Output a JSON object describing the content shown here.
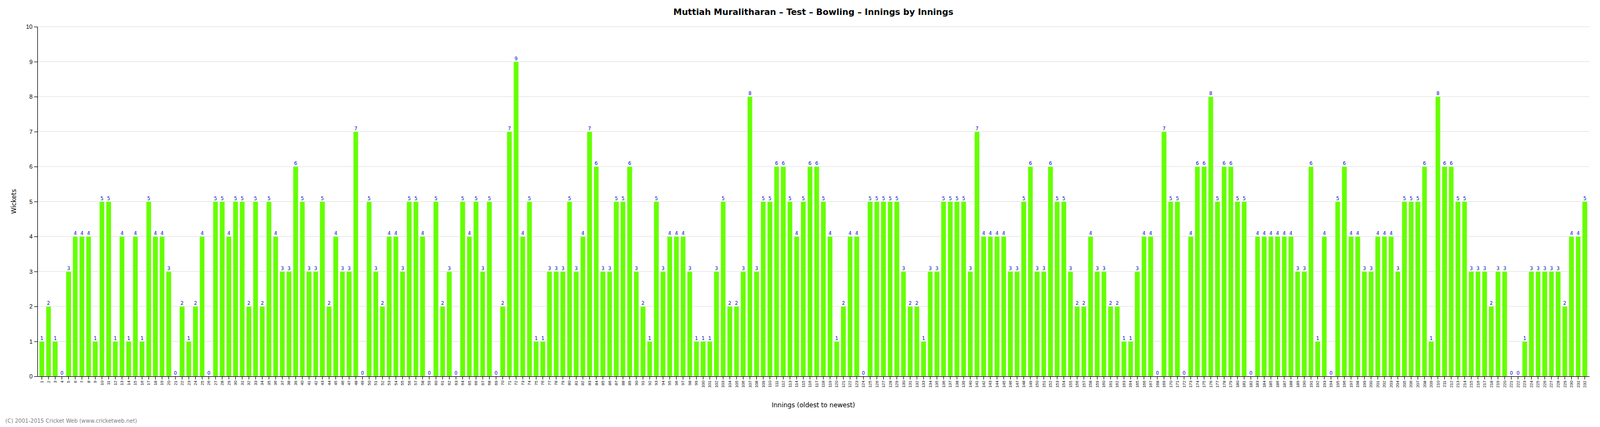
{
  "chart_data": {
    "type": "bar",
    "title": "Muttiah Muralitharan – Test – Bowling – Innings by Innings",
    "xlabel": "Innings (oldest to newest)",
    "ylabel": "Wickets",
    "color": "#66FF00",
    "categories": [
      "1",
      "2",
      "3",
      "4",
      "5",
      "6",
      "7",
      "8",
      "9",
      "10",
      "11",
      "12",
      "13",
      "14",
      "15",
      "16",
      "17",
      "18",
      "19",
      "20",
      "21",
      "22",
      "23",
      "24",
      "25",
      "26",
      "27",
      "28",
      "29",
      "30",
      "31",
      "32",
      "33",
      "34",
      "35",
      "36",
      "37",
      "38",
      "39",
      "40",
      "41",
      "42",
      "43",
      "44",
      "45",
      "46",
      "47",
      "48",
      "49",
      "50",
      "51",
      "52",
      "53",
      "54",
      "55",
      "56",
      "57",
      "58",
      "59",
      "60",
      "61",
      "62",
      "63",
      "64",
      "65",
      "66",
      "67",
      "68",
      "69",
      "70",
      "71",
      "72",
      "73",
      "74",
      "75",
      "76",
      "77",
      "78",
      "79",
      "80",
      "81",
      "82",
      "83",
      "84",
      "85",
      "86",
      "87",
      "88",
      "89",
      "90",
      "91",
      "92",
      "93",
      "94",
      "95",
      "96",
      "97",
      "98",
      "99",
      "100",
      "101",
      "102",
      "103",
      "104",
      "105",
      "106",
      "107",
      "108",
      "109",
      "110",
      "111",
      "112",
      "113",
      "114",
      "115",
      "116",
      "117",
      "118",
      "119",
      "120",
      "121",
      "122",
      "123",
      "124",
      "125",
      "126",
      "127",
      "128",
      "129",
      "130",
      "131",
      "132",
      "133",
      "134",
      "135",
      "136",
      "137",
      "138",
      "139",
      "140",
      "141",
      "142",
      "143",
      "144",
      "145",
      "146",
      "147",
      "148",
      "149",
      "150",
      "151",
      "152",
      "153",
      "154",
      "155",
      "156",
      "157",
      "158",
      "159",
      "160",
      "161",
      "162",
      "163",
      "164",
      "165",
      "166",
      "167",
      "168",
      "169",
      "170",
      "171",
      "172",
      "173",
      "174",
      "175",
      "176",
      "177",
      "178",
      "179",
      "180",
      "181",
      "182",
      "183",
      "184",
      "185",
      "186",
      "187",
      "188",
      "189",
      "190",
      "191",
      "192",
      "193",
      "194",
      "195",
      "196",
      "197",
      "198",
      "199",
      "200",
      "201",
      "202",
      "203",
      "204",
      "205",
      "206",
      "207",
      "208",
      "209",
      "210",
      "211",
      "212",
      "213",
      "214",
      "215",
      "216",
      "217",
      "218",
      "219",
      "220",
      "221",
      "222",
      "223",
      "224",
      "225",
      "226",
      "227",
      "228",
      "229",
      "230",
      "231",
      "232"
    ],
    "values": [
      1,
      2,
      1,
      0,
      3,
      4,
      4,
      4,
      1,
      5,
      5,
      1,
      4,
      1,
      4,
      1,
      5,
      4,
      4,
      3,
      0,
      2,
      1,
      2,
      4,
      0,
      5,
      5,
      4,
      5,
      5,
      2,
      5,
      2,
      5,
      4,
      3,
      3,
      6,
      5,
      3,
      3,
      5,
      2,
      4,
      3,
      3,
      7,
      0,
      5,
      3,
      2,
      4,
      4,
      3,
      5,
      5,
      4,
      0,
      5,
      2,
      3,
      0,
      5,
      4,
      5,
      3,
      5,
      0,
      2,
      7,
      9,
      4,
      5,
      1,
      1,
      3,
      3,
      3,
      5,
      3,
      4,
      7,
      6,
      3,
      3,
      5,
      5,
      6,
      3,
      2,
      1,
      5,
      3,
      4,
      4,
      4,
      3,
      1,
      1,
      1,
      3,
      5,
      2,
      2,
      3,
      8,
      3,
      5,
      5,
      6,
      6,
      5,
      4,
      5,
      6,
      6,
      5,
      4,
      1,
      2,
      4,
      4,
      0,
      5,
      5,
      5,
      5,
      5,
      3,
      2,
      2,
      1,
      3,
      3,
      5,
      5,
      5,
      5,
      3,
      7,
      4,
      4,
      4,
      4,
      3,
      3,
      5,
      6,
      3,
      3,
      6,
      5,
      5,
      3,
      2,
      2,
      4,
      3,
      3,
      2,
      2,
      1,
      1,
      3,
      4,
      4,
      0,
      7,
      5,
      5,
      0,
      4,
      6,
      6,
      8,
      5,
      6,
      6,
      5,
      5,
      0,
      4,
      4,
      4,
      4,
      4,
      4,
      3,
      3,
      6,
      1,
      4,
      0,
      5,
      6,
      4,
      4,
      3,
      3,
      4,
      4,
      4,
      3,
      5,
      5,
      5,
      6,
      1,
      8,
      6,
      6,
      5,
      5,
      3,
      3,
      3,
      2,
      3,
      3,
      0,
      0,
      1,
      3,
      3,
      3,
      3,
      3,
      2,
      4,
      4,
      5
    ],
    "ylim": [
      0,
      10
    ],
    "yticks": [
      0,
      1,
      2,
      3,
      4,
      5,
      6,
      7,
      8,
      9,
      10
    ],
    "grid": true,
    "data_labels": true,
    "annotations": [
      "(C) 2001-2015 Cricket Web (www.cricketweb.net)"
    ]
  }
}
